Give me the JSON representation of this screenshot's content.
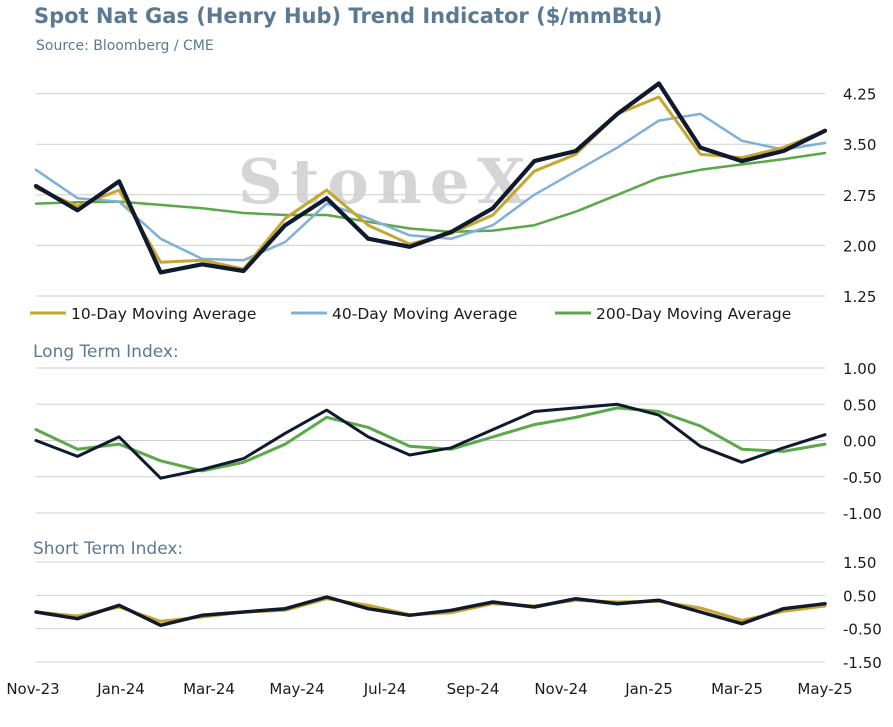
{
  "title": "Spot Nat Gas (Henry Hub) Trend Indicator ($/mmBtu)",
  "subtitle": "Source: Bloomberg / CME",
  "watermark": "StoneX",
  "colors": {
    "spot": "#0f1a2e",
    "ma10": "#c6a62e",
    "ma40": "#7fb0d8",
    "ma200": "#5aa84a",
    "title": "#5a7a93"
  },
  "x_labels": [
    "Nov-23",
    "Jan-24",
    "Mar-24",
    "May-24",
    "Jul-24",
    "Sep-24",
    "Nov-24",
    "Jan-25",
    "Mar-25",
    "May-25"
  ],
  "chart_data": [
    {
      "type": "line",
      "title": "Spot Nat Gas (Henry Hub) Trend Indicator ($/mmBtu)",
      "ylim": [
        1.25,
        4.6
      ],
      "yticks": [
        "1.25",
        "2.00",
        "2.75",
        "3.50",
        "4.25"
      ],
      "ytick_values": [
        1.25,
        2.0,
        2.75,
        3.5,
        4.25
      ],
      "x": [
        "Nov-23",
        "Dec-23",
        "Jan-24",
        "Feb-24",
        "Mar-24",
        "Apr-24",
        "May-24",
        "Jun-24",
        "Jul-24",
        "Aug-24",
        "Sep-24",
        "Oct-24",
        "Nov-24",
        "Dec-24",
        "Jan-25",
        "Feb-25",
        "Mar-25",
        "Apr-25",
        "May-25",
        "Jun-25"
      ],
      "series": [
        {
          "name": "Spot",
          "values": [
            2.88,
            2.52,
            2.95,
            1.6,
            1.72,
            1.62,
            2.3,
            2.7,
            2.1,
            1.98,
            2.2,
            2.55,
            3.25,
            3.4,
            3.95,
            4.4,
            3.45,
            3.25,
            3.4,
            3.7
          ]
        },
        {
          "name": "10-Day Moving Average",
          "values": [
            2.85,
            2.58,
            2.82,
            1.75,
            1.78,
            1.65,
            2.4,
            2.82,
            2.3,
            2.02,
            2.18,
            2.45,
            3.1,
            3.35,
            3.95,
            4.2,
            3.35,
            3.3,
            3.45,
            3.7
          ]
        },
        {
          "name": "40-Day Moving Average",
          "values": [
            3.12,
            2.7,
            2.65,
            2.1,
            1.8,
            1.78,
            2.05,
            2.62,
            2.4,
            2.15,
            2.1,
            2.3,
            2.75,
            3.1,
            3.45,
            3.85,
            3.95,
            3.55,
            3.42,
            3.52
          ]
        },
        {
          "name": "200-Day Moving Average",
          "values": [
            2.62,
            2.64,
            2.65,
            2.6,
            2.55,
            2.48,
            2.45,
            2.45,
            2.35,
            2.25,
            2.2,
            2.22,
            2.3,
            2.5,
            2.75,
            3.0,
            3.12,
            3.2,
            3.28,
            3.37
          ]
        }
      ],
      "legend": [
        "10-Day Moving Average",
        "40-Day Moving Average",
        "200-Day Moving Average"
      ],
      "legend_position": "bottom"
    },
    {
      "type": "line",
      "title": "Long Term Index:",
      "ylim": [
        -1.0,
        1.0
      ],
      "yticks": [
        "1.00",
        "0.50",
        "0.00",
        "-0.50",
        "-1.00"
      ],
      "ytick_values": [
        1.0,
        0.5,
        0.0,
        -0.5,
        -1.0
      ],
      "x": [
        "Nov-23",
        "Dec-23",
        "Jan-24",
        "Feb-24",
        "Mar-24",
        "Apr-24",
        "May-24",
        "Jun-24",
        "Jul-24",
        "Aug-24",
        "Sep-24",
        "Oct-24",
        "Nov-24",
        "Dec-24",
        "Jan-25",
        "Feb-25",
        "Mar-25",
        "Apr-25",
        "May-25",
        "Jun-25"
      ],
      "series": [
        {
          "values": [
            0.0,
            -0.22,
            0.05,
            -0.52,
            -0.4,
            -0.25,
            0.1,
            0.42,
            0.05,
            -0.2,
            -0.1,
            0.15,
            0.4,
            0.45,
            0.5,
            0.35,
            -0.08,
            -0.3,
            -0.1,
            0.08
          ]
        },
        {
          "values": [
            0.15,
            -0.12,
            -0.05,
            -0.28,
            -0.42,
            -0.3,
            -0.05,
            0.32,
            0.18,
            -0.08,
            -0.12,
            0.05,
            0.22,
            0.32,
            0.45,
            0.4,
            0.2,
            -0.12,
            -0.15,
            -0.05
          ]
        }
      ]
    },
    {
      "type": "line",
      "title": "Short Term Index:",
      "ylim": [
        -1.5,
        1.5
      ],
      "yticks": [
        "1.50",
        "0.50",
        "-0.50",
        "-1.50"
      ],
      "ytick_values": [
        1.5,
        0.5,
        -0.5,
        -1.5
      ],
      "x": [
        "Nov-23",
        "Dec-23",
        "Jan-24",
        "Feb-24",
        "Mar-24",
        "Apr-24",
        "May-24",
        "Jun-24",
        "Jul-24",
        "Aug-24",
        "Sep-24",
        "Oct-24",
        "Nov-24",
        "Dec-24",
        "Jan-25",
        "Feb-25",
        "Mar-25",
        "Apr-25",
        "May-25",
        "Jun-25"
      ],
      "series": [
        {
          "values": [
            0.0,
            -0.2,
            0.2,
            -0.4,
            -0.1,
            0.0,
            0.1,
            0.45,
            0.1,
            -0.1,
            0.05,
            0.3,
            0.15,
            0.4,
            0.25,
            0.35,
            0.0,
            -0.35,
            0.1,
            0.25
          ]
        },
        {
          "values": [
            0.0,
            -0.12,
            0.15,
            -0.28,
            -0.15,
            0.0,
            0.05,
            0.4,
            0.2,
            -0.08,
            -0.02,
            0.25,
            0.18,
            0.35,
            0.3,
            0.32,
            0.12,
            -0.25,
            0.02,
            0.18
          ]
        }
      ]
    }
  ]
}
